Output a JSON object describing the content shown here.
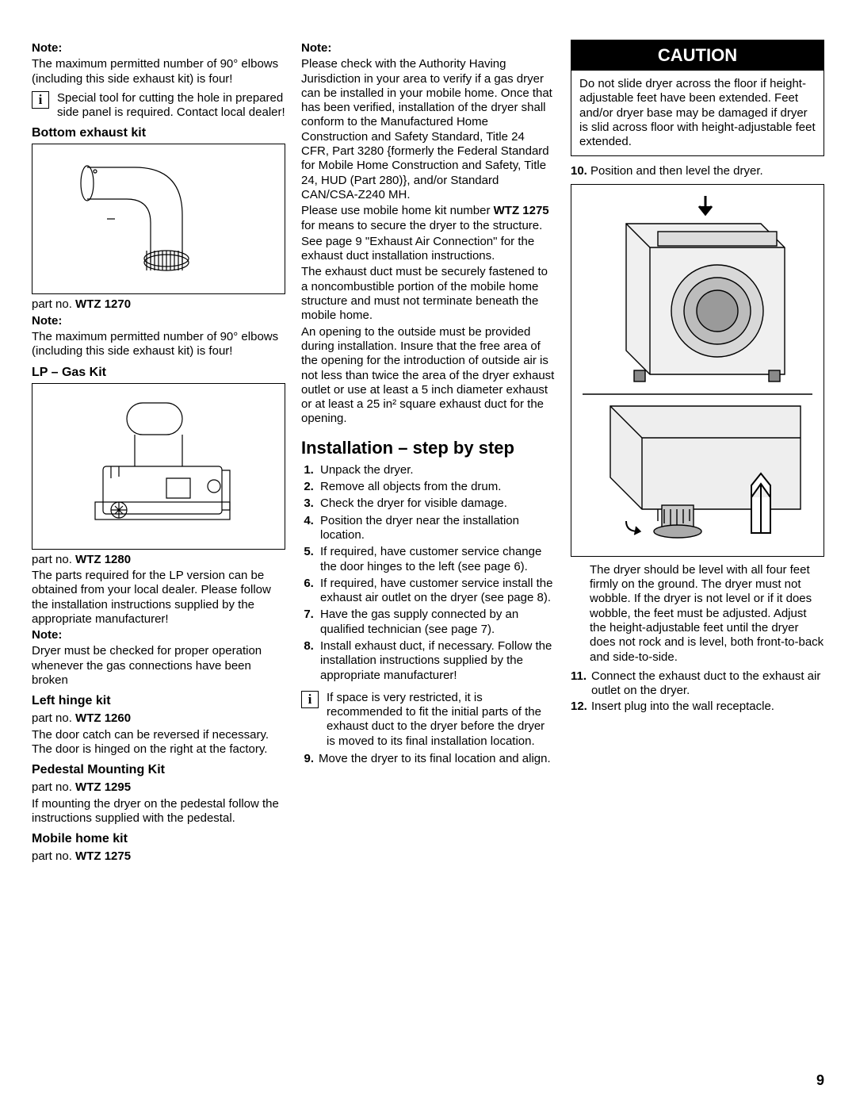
{
  "page_number": "9",
  "col1": {
    "note1_label": "Note:",
    "note1_text": "The maximum permitted number of 90° elbows (including this side exhaust kit) is four!",
    "info1_text": "Special tool for cutting the hole in prepared side panel is required. Contact local dealer!",
    "bottom_kit_heading": "Bottom exhaust kit",
    "bottom_part_prefix": "part no. ",
    "bottom_part_no": "WTZ 1270",
    "note2_label": "Note:",
    "note2_text": "The maximum permitted number of 90° elbows (including this side exhaust kit) is four!",
    "lp_heading": "LP – Gas Kit",
    "lp_part_prefix": "part no. ",
    "lp_part_no": "WTZ 1280",
    "lp_text": "The parts required for  the LP version can be obtained from your local dealer. Please follow the installation instructions supplied by the appropriate manufacturer!",
    "note3_label": "Note:",
    "note3_text": "Dryer  must be checked for proper operation whenever the gas connections have been broken",
    "lefthinge_heading": "Left hinge kit",
    "lefthinge_part_prefix": "part no. ",
    "lefthinge_part_no": "WTZ 1260",
    "lefthinge_text": "The door catch can be reversed if necessary. The door is hinged on the right at the factory.",
    "pedestal_heading": "Pedestal Mounting Kit",
    "pedestal_part_prefix": "part no. ",
    "pedestal_part_no": "WTZ 1295",
    "pedestal_text": "If mounting the dryer on the pedestal follow the instructions supplied with the pedestal.",
    "mobile_heading": "Mobile home kit",
    "mobile_part_prefix": "part no. ",
    "mobile_part_no": "WTZ 1275"
  },
  "col2": {
    "note_label": "Note:",
    "p1a": "Please check with the Authority Having Jurisdiction in your area to verify if a gas dryer can be installed in your mobile home. Once that has been verified, installation of the dryer shall conform to the Manufactured Home Construction and Safety Standard, Title 24 CFR, Part 3280 {formerly the Federal Standard for Mobile Home Construction and Safety, Title 24, HUD (Part 280)}, and/or Standard CAN/CSA-Z240 MH.",
    "p1b_pre": "Please use mobile home kit number ",
    "p1b_bold": "WTZ 1275",
    "p1b_post": " for means to secure the dryer to the structure.",
    "p2": "See page 9 \"Exhaust Air Connection\" for the exhaust duct installation instructions.",
    "p3": "The exhaust duct must be securely fastened to a noncombustible portion of the mobile home structure and must not terminate beneath the mobile home.",
    "p4": "An opening to the outside must be provided during installation. Insure that the free area of the opening for the introduction of outside air is not less than twice the area of the dryer exhaust outlet or use at least a 5 inch diameter exhaust or at least a 25 in² square exhaust duct for the opening.",
    "install_heading": "Installation – step by step",
    "steps": [
      "Unpack the dryer.",
      "Remove all objects from the drum.",
      "Check the dryer for visible damage.",
      "Position the dryer near the installation location.",
      "If required, have customer service change the door hinges to the left (see page 6).",
      "If required, have customer service install the exhaust air outlet on the dryer (see page 8).",
      "Have the gas supply connected by an qualified technician (see page 7).",
      "Install exhaust duct, if necessary. Follow the installation instructions supplied by the appropriate manufacturer!"
    ],
    "info_text": "If space is very restricted, it is recommended to fit the initial parts of the exhaust duct to the dryer before the dryer is moved to its final installation location.",
    "step9_num": "9.",
    "step9_text": "Move the dryer to its final location and align."
  },
  "col3": {
    "caution_title": "CAUTION",
    "caution_text": "Do not slide dryer across the floor if height-adjustable feet have been extended. Feet and/or dryer base may be damaged if dryer is slid across floor with height-adjustable feet extended.",
    "step10_num": "10.",
    "step10_text": " Position and then level the dryer.",
    "level_text": "The dryer should be level with all four feet firmly on the ground. The dryer must not wobble. If the dryer is not level or if it does wobble, the feet must be adjusted. Adjust the height-adjustable feet until the dryer does not rock and is level, both front-to-back and side-to-side.",
    "step11_num": "11.",
    "step11_text": " Connect the exhaust duct to the exhaust air outlet on the dryer.",
    "step12_num": "12.",
    "step12_text": " Insert plug into the wall receptacle."
  },
  "style": {
    "body_font_size": 15,
    "heading_font_size": 16,
    "section_heading_font_size": 22,
    "caution_header_font_size": 22,
    "page_number_font_size": 18,
    "line_height": 1.22,
    "text_color": "#000000",
    "background_color": "#ffffff",
    "caution_bg": "#000000",
    "caution_fg": "#ffffff",
    "border_color": "#000000"
  }
}
